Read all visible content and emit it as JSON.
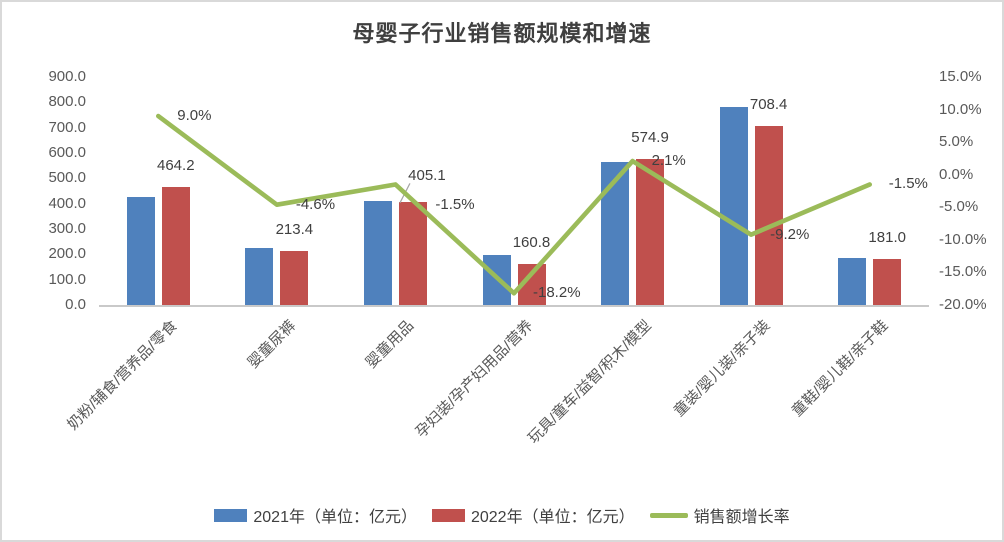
{
  "title": "母婴子行业销售额规模和增速",
  "colors": {
    "bar_2021": "#4F81BD",
    "bar_2022": "#C0504D",
    "line_growth": "#9BBB59",
    "axis_text": "#595959",
    "label_text": "#404040",
    "frame_border": "#D9D9D9",
    "axis_line": "#C9C9C9",
    "leader_line": "#A6A6A6"
  },
  "chart_data": {
    "type": "bar",
    "subtype": "combo-bar-line-dual-axis",
    "title": "母婴子行业销售额规模和增速",
    "grid": false,
    "categories": [
      "奶粉/辅食/营养品/零食",
      "婴童尿裤",
      "婴童用品",
      "孕妇装/孕产妇用品/营养",
      "玩具/童车/益智/积木/模型",
      "童装/婴儿装/亲子装",
      "童鞋/婴儿鞋/亲子鞋"
    ],
    "series": [
      {
        "name": "2021年（单位：亿元）",
        "type": "bar",
        "axis": "left",
        "color": "#4F81BD",
        "values": [
          425.9,
          223.7,
          411.3,
          196.6,
          563.1,
          780.2,
          183.8
        ]
      },
      {
        "name": "2022年（单位：亿元）",
        "type": "bar",
        "axis": "left",
        "color": "#C0504D",
        "values": [
          464.2,
          213.4,
          405.1,
          160.8,
          574.9,
          708.4,
          181.0
        ],
        "data_labels": [
          "464.2",
          "213.4",
          "405.1",
          "160.8",
          "574.9",
          "708.4",
          "181.0"
        ]
      },
      {
        "name": "销售额增长率",
        "type": "line",
        "axis": "right",
        "color": "#9BBB59",
        "values": [
          9.0,
          -4.6,
          -1.5,
          -18.2,
          2.1,
          -9.2,
          -1.5
        ],
        "data_labels": [
          "9.0%",
          "-4.6%",
          "-1.5%",
          "-18.2%",
          "2.1%",
          "-9.2%",
          "-1.5%"
        ]
      }
    ],
    "left_axis": {
      "min": 0,
      "max": 900,
      "step": 100,
      "tick_labels": [
        "900.0",
        "800.0",
        "700.0",
        "600.0",
        "500.0",
        "400.0",
        "300.0",
        "200.0",
        "100.0",
        "0.0"
      ]
    },
    "right_axis": {
      "min": -20,
      "max": 15,
      "step": 5,
      "tick_labels": [
        "15.0%",
        "10.0%",
        "5.0%",
        "0.0%",
        "-5.0%",
        "-10.0%",
        "-15.0%",
        "-20.0%"
      ]
    },
    "legend": {
      "position": "bottom",
      "entries": [
        "2021年（单位：亿元）",
        "2022年（单位：亿元）",
        "销售额增长率"
      ]
    }
  }
}
